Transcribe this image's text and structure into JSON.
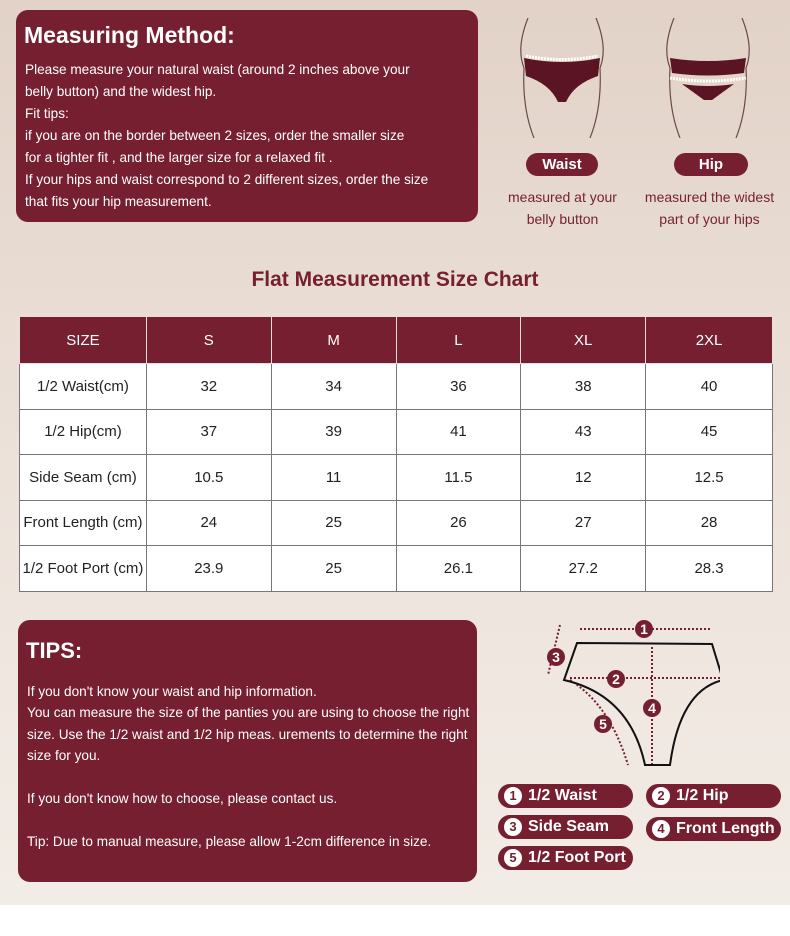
{
  "method": {
    "title": "Measuring Method:",
    "lines": [
      "Please measure your natural waist (around 2 inches above your",
      "belly button) and the widest hip.",
      "Fit tips:",
      "if you are on the border between 2 sizes, order the smaller size",
      "for a tighter fit , and the larger size for a relaxed fit .",
      "If your hips and waist correspond to 2 different sizes, order the size",
      "that fits your hip measurement."
    ]
  },
  "figures": [
    {
      "label": "Waist",
      "caption1": "measured at your",
      "caption2": "belly button"
    },
    {
      "label": "Hip",
      "caption1": "measured the widest",
      "caption2": "part of your hips"
    }
  ],
  "chart_title": "Flat Measurement Size Chart",
  "table": {
    "headers": [
      "SIZE",
      "S",
      "M",
      "L",
      "XL",
      "2XL"
    ],
    "rows": [
      [
        "1/2 Waist(cm)",
        "32",
        "34",
        "36",
        "38",
        "40"
      ],
      [
        "1/2 Hip(cm)",
        "37",
        "39",
        "41",
        "43",
        "45"
      ],
      [
        "Side Seam (cm)",
        "10.5",
        "11",
        "11.5",
        "12",
        "12.5"
      ],
      [
        "Front Length (cm)",
        "24",
        "25",
        "26",
        "27",
        "28"
      ],
      [
        "1/2 Foot Port (cm)",
        "23.9",
        "25",
        "26.1",
        "27.2",
        "28.3"
      ]
    ]
  },
  "tips": {
    "title": "TIPS:",
    "p1": "If you don't know your waist and hip information.",
    "p2": "You can measure the size of the panties you are using to choose the right size. Use the 1/2 waist and 1/2 hip meas. urements to determine the right size for you.",
    "p3": "If you don't know how to choose, please contact us.",
    "p4": "Tip: Due to manual measure, please allow 1-2cm difference in size."
  },
  "diagram_numbers": [
    "1",
    "2",
    "3",
    "4",
    "5"
  ],
  "legend": [
    {
      "n": "1",
      "label": "1/2 Waist"
    },
    {
      "n": "2",
      "label": "1/2 Hip"
    },
    {
      "n": "3",
      "label": "Side Seam"
    },
    {
      "n": "4",
      "label": "Front Length"
    },
    {
      "n": "5",
      "label": "1/2 Foot Port"
    }
  ],
  "colors": {
    "accent": "#761f30"
  }
}
